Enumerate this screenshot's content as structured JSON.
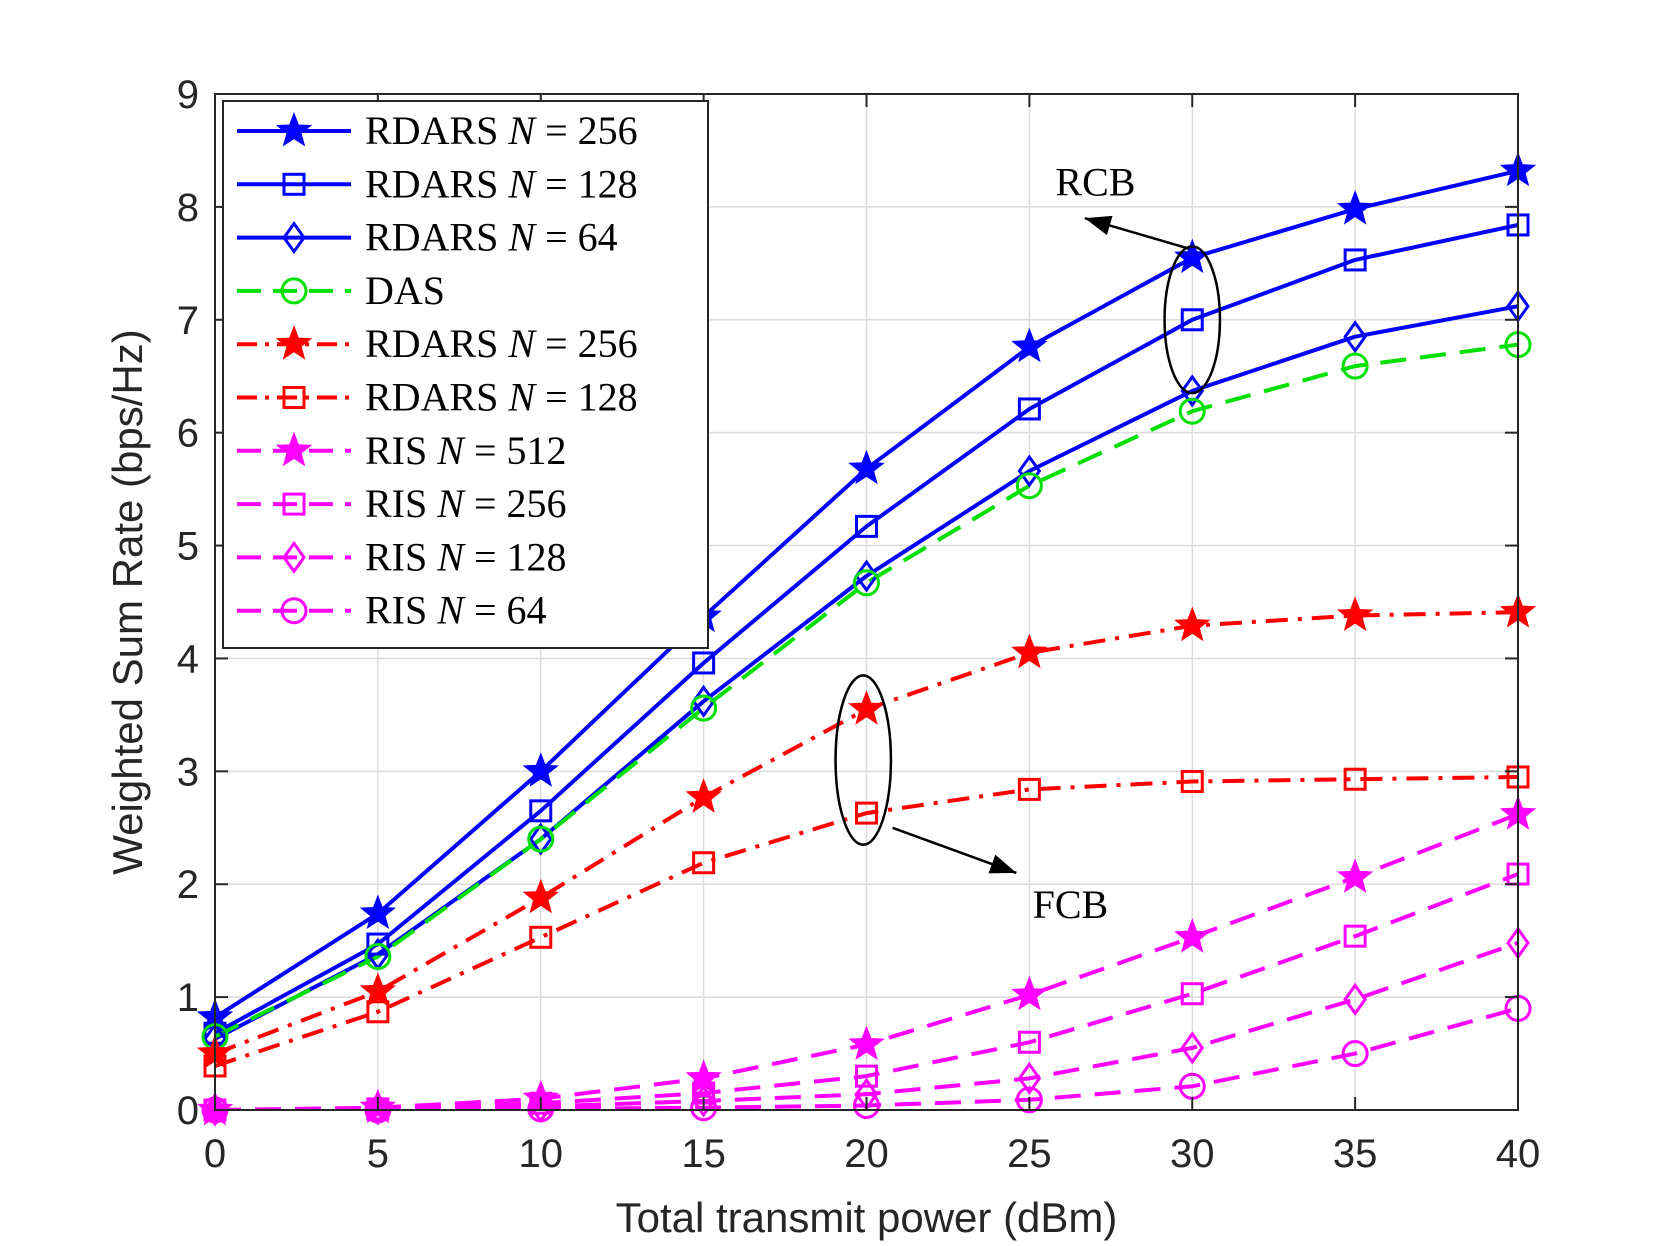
{
  "chart_data": {
    "type": "line",
    "xlabel": "Total transmit power (dBm)",
    "ylabel": "Weighted Sum Rate (bps/Hz)",
    "xlim": [
      0,
      40
    ],
    "ylim": [
      0,
      9
    ],
    "xticks": [
      0,
      5,
      10,
      15,
      20,
      25,
      30,
      35,
      40
    ],
    "yticks": [
      0,
      1,
      2,
      3,
      4,
      5,
      6,
      7,
      8,
      9
    ],
    "grid": true,
    "legend_position": "top-left",
    "x": [
      0,
      5,
      10,
      15,
      20,
      25,
      30,
      35,
      40
    ],
    "series": [
      {
        "name": "RDARS",
        "param": "N = 256",
        "color": "#0000ff",
        "marker": "star",
        "dash": "solid",
        "fill_marker": true,
        "values": [
          0.82,
          1.74,
          3.0,
          4.37,
          5.68,
          6.76,
          7.55,
          7.98,
          8.32
        ]
      },
      {
        "name": "RDARS",
        "param": "N = 128",
        "color": "#0000ff",
        "marker": "square",
        "dash": "solid",
        "fill_marker": false,
        "values": [
          0.68,
          1.47,
          2.65,
          3.96,
          5.17,
          6.21,
          7.0,
          7.53,
          7.84
        ]
      },
      {
        "name": "RDARS",
        "param": "N = 64",
        "color": "#0000ff",
        "marker": "diamond",
        "dash": "solid",
        "fill_marker": false,
        "values": [
          0.63,
          1.38,
          2.4,
          3.62,
          4.73,
          5.66,
          6.37,
          6.85,
          7.12
        ]
      },
      {
        "name": "DAS",
        "param": "",
        "color": "#00e000",
        "marker": "circle",
        "dash": "dashed",
        "fill_marker": false,
        "values": [
          0.65,
          1.36,
          2.4,
          3.56,
          4.67,
          5.53,
          6.19,
          6.59,
          6.78
        ]
      },
      {
        "name": "RDARS",
        "param": "N = 256",
        "color": "#ff0000",
        "marker": "star",
        "dash": "dashdot",
        "fill_marker": true,
        "values": [
          0.5,
          1.05,
          1.88,
          2.77,
          3.55,
          4.05,
          4.29,
          4.38,
          4.41
        ]
      },
      {
        "name": "RDARS",
        "param": "N = 128",
        "color": "#ff0000",
        "marker": "square",
        "dash": "dashdot",
        "fill_marker": false,
        "values": [
          0.39,
          0.87,
          1.53,
          2.19,
          2.63,
          2.84,
          2.91,
          2.93,
          2.95
        ]
      },
      {
        "name": "RIS",
        "param": "N = 512",
        "color": "#ff00ff",
        "marker": "star",
        "dash": "dashed",
        "fill_marker": true,
        "values": [
          0.0,
          0.02,
          0.1,
          0.28,
          0.58,
          1.02,
          1.53,
          2.06,
          2.62
        ]
      },
      {
        "name": "RIS",
        "param": "N = 256",
        "color": "#ff00ff",
        "marker": "square",
        "dash": "dashed",
        "fill_marker": false,
        "values": [
          0.0,
          0.01,
          0.06,
          0.15,
          0.3,
          0.6,
          1.03,
          1.54,
          2.09
        ]
      },
      {
        "name": "RIS",
        "param": "N = 128",
        "color": "#ff00ff",
        "marker": "diamond",
        "dash": "dashed",
        "fill_marker": false,
        "values": [
          0.0,
          0.01,
          0.03,
          0.08,
          0.14,
          0.28,
          0.55,
          0.98,
          1.48
        ]
      },
      {
        "name": "RIS",
        "param": "N = 64",
        "color": "#ff00ff",
        "marker": "circle",
        "dash": "dashed",
        "fill_marker": false,
        "values": [
          0.0,
          0.0,
          0.01,
          0.02,
          0.04,
          0.09,
          0.21,
          0.5,
          0.9
        ]
      }
    ],
    "annotations": [
      {
        "text": "RCB",
        "x": 25.8,
        "y": 8.1,
        "arrow_tail": [
          29.9,
          7.63
        ],
        "arrow_head": [
          26.7,
          7.9
        ],
        "ellipse_center": [
          30.0,
          7.0
        ],
        "ellipse_rx": 0.85,
        "ellipse_ry": 0.65
      },
      {
        "text": "FCB",
        "x": 25.1,
        "y": 1.7,
        "arrow_tail": [
          20.8,
          2.5
        ],
        "arrow_head": [
          24.6,
          2.1
        ],
        "ellipse_center": [
          19.9,
          3.1
        ],
        "ellipse_rx": 0.85,
        "ellipse_ry": 0.75
      }
    ]
  }
}
